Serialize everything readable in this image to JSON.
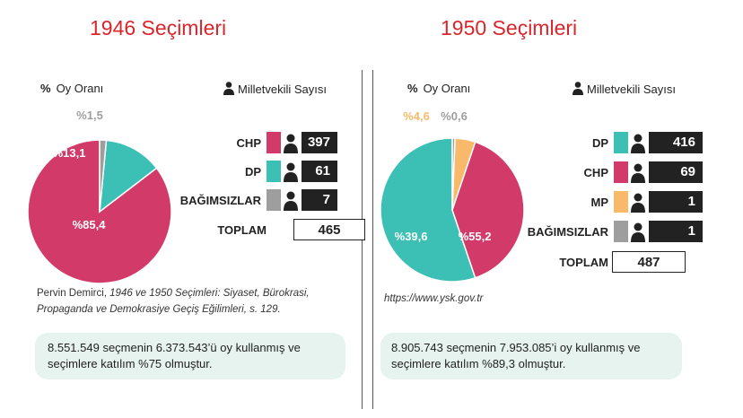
{
  "colors": {
    "chp": "#d23a6a",
    "dp": "#3cbfb4",
    "independent": "#9e9e9e",
    "mp": "#f9b96b",
    "title": "#d9262b"
  },
  "labels": {
    "oy_orani": "Oy Oranı",
    "percent_sign": "%",
    "milletvekili": "Milletvekili Sayısı",
    "toplam": "TOPLAM"
  },
  "chart_data": [
    {
      "type": "pie",
      "title": "1946 Seçimleri",
      "slices": [
        {
          "label": "CHP",
          "value": 85.4,
          "display": "%85,4",
          "color": "#d23a6a"
        },
        {
          "label": "DP",
          "value": 13.1,
          "display": "%13,1",
          "color": "#3cbfb4"
        },
        {
          "label": "BAĞIMSIZLAR",
          "value": 1.5,
          "display": "%1,5",
          "color": "#9e9e9e"
        }
      ],
      "seats": [
        {
          "party": "CHP",
          "seats": "397",
          "color": "#d23a6a"
        },
        {
          "party": "DP",
          "seats": "61",
          "color": "#3cbfb4"
        },
        {
          "party": "BAĞIMSIZLAR",
          "seats": "7",
          "color": "#9e9e9e"
        }
      ],
      "total": "465",
      "source_line1_pre": "Pervin Demirci, ",
      "source_line1_italic": "1946 ve 1950 Seçimleri: Siyaset, Bürokrasi,",
      "source_line2_italic": "Propaganda ve Demokrasiye Geçiş Eğilimleri",
      "source_line2_post": ", s. 129.",
      "note_line1": "8.551.549 seçmenin 6.373.543’ü oy kullanmış ve",
      "note_line2": "seçimlere katılım %75 olmuştur."
    },
    {
      "type": "pie",
      "title": "1950 Seçimleri",
      "slices": [
        {
          "label": "DP",
          "value": 55.2,
          "display": "%55,2",
          "color": "#3cbfb4"
        },
        {
          "label": "CHP",
          "value": 39.6,
          "display": "%39,6",
          "color": "#d23a6a"
        },
        {
          "label": "MP",
          "value": 4.6,
          "display": "%4,6",
          "color": "#f9b96b"
        },
        {
          "label": "BAĞIMSIZLAR",
          "value": 0.6,
          "display": "%0,6",
          "color": "#9e9e9e"
        }
      ],
      "seats": [
        {
          "party": "DP",
          "seats": "416",
          "color": "#3cbfb4"
        },
        {
          "party": "CHP",
          "seats": "69",
          "color": "#d23a6a"
        },
        {
          "party": "MP",
          "seats": "1",
          "color": "#f9b96b"
        },
        {
          "party": "BAĞIMSIZLAR",
          "seats": "1",
          "color": "#9e9e9e"
        }
      ],
      "total": "487",
      "source": "https://www.ysk.gov.tr",
      "note_line1": "8.905.743 seçmenin 7.953.085’i oy kullanmış ve",
      "note_line2": "seçimlere katılım %89,3 olmuştur."
    }
  ]
}
